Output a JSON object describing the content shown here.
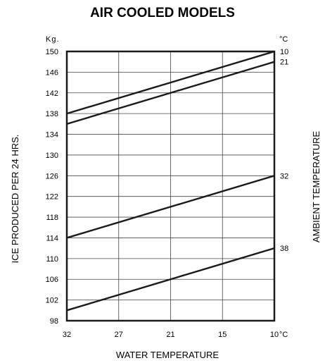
{
  "chart_data": {
    "type": "line",
    "title": "AIR COOLED MODELS",
    "ylabel": "ICE PRODUCED PER 24 HRS.",
    "y_unit": "Kg.",
    "xlabel": "WATER TEMPERATURE",
    "x_unit": "°C",
    "right_label": "AMBIENT TEMPERATURE",
    "right_unit": "°C",
    "x_ticks": [
      "32",
      "27",
      "21",
      "15",
      "10"
    ],
    "y_ticks": [
      "150",
      "146",
      "142",
      "138",
      "134",
      "130",
      "126",
      "122",
      "118",
      "114",
      "110",
      "106",
      "102",
      "98"
    ],
    "ylim": [
      98,
      150
    ],
    "x_reversed": true,
    "grid": true,
    "legend": "series labels at right edge",
    "series": [
      {
        "name": "10",
        "x": [
          32,
          10
        ],
        "y": [
          138,
          150
        ]
      },
      {
        "name": "21",
        "x": [
          32,
          10
        ],
        "y": [
          136,
          148
        ]
      },
      {
        "name": "32",
        "x": [
          32,
          10
        ],
        "y": [
          114,
          126
        ]
      },
      {
        "name": "38",
        "x": [
          32,
          10
        ],
        "y": [
          100,
          112
        ]
      }
    ]
  }
}
